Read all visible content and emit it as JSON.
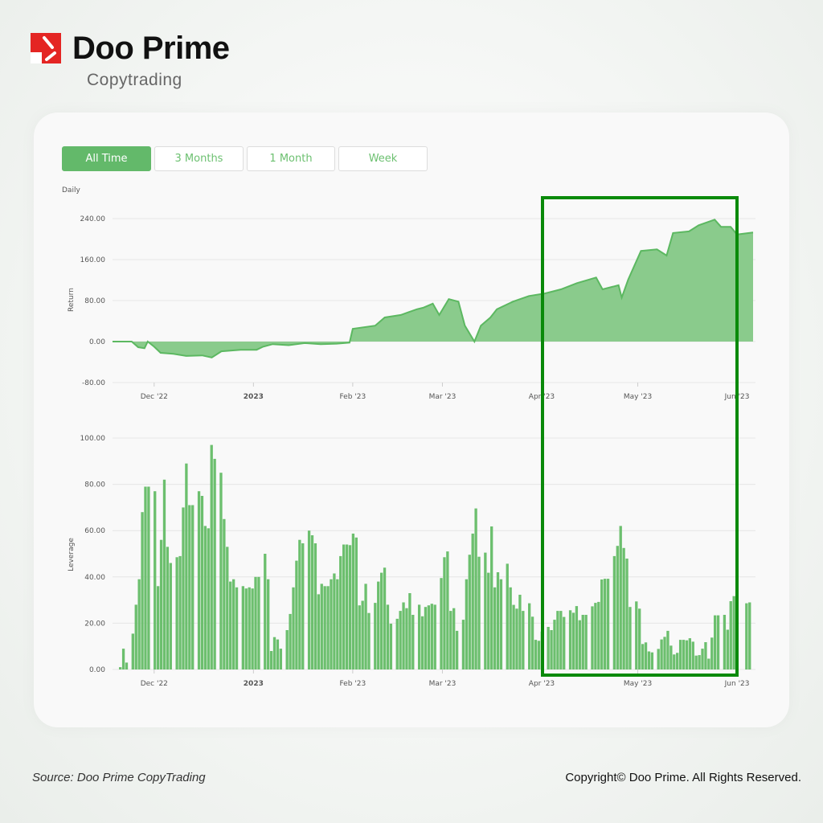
{
  "brand": {
    "name": "Doo Prime",
    "subtitle": "Copytrading",
    "logo_color": "#e42523"
  },
  "tabs": [
    {
      "label": "All Time",
      "active": true
    },
    {
      "label": "3 Months",
      "active": false
    },
    {
      "label": "1 Month",
      "active": false
    },
    {
      "label": "Week",
      "active": false
    }
  ],
  "footer": {
    "source": "Source: Doo Prime CopyTrading",
    "copyright": "Copyright© Doo Prime. All Rights Reserved."
  },
  "colors": {
    "accent": "#63b96a",
    "area_fill": "#8acb8c",
    "area_line": "#5cb861",
    "bar": "#6cbf6e",
    "highlight": "#0a8a0a"
  },
  "chart_data": [
    {
      "type": "area",
      "title": "Daily",
      "ylabel": "Return",
      "ylim": [
        -80,
        240
      ],
      "yticks": [
        "240.00",
        "160.00",
        "80.00",
        "0.00",
        "-80.00"
      ],
      "ytick_values": [
        240,
        160,
        80,
        0,
        -80
      ],
      "xlim": [
        "2022-11-18",
        "2023-06-06"
      ],
      "xticks": [
        {
          "date": "2022-12-01",
          "label": "Dec '22",
          "bold": false
        },
        {
          "date": "2023-01-01",
          "label": "2023",
          "bold": true
        },
        {
          "date": "2023-02-01",
          "label": "Feb '23",
          "bold": false
        },
        {
          "date": "2023-03-01",
          "label": "Mar '23",
          "bold": false
        },
        {
          "date": "2023-04-01",
          "label": "Apr '23",
          "bold": false
        },
        {
          "date": "2023-05-01",
          "label": "May '23",
          "bold": false
        },
        {
          "date": "2023-06-01",
          "label": "Jun '23",
          "bold": false
        }
      ],
      "grid": true,
      "points": [
        [
          "2022-11-18",
          0
        ],
        [
          "2022-11-24",
          0
        ],
        [
          "2022-11-26",
          -11
        ],
        [
          "2022-11-28",
          -13
        ],
        [
          "2022-11-29",
          0
        ],
        [
          "2022-12-01",
          -10
        ],
        [
          "2022-12-03",
          -22
        ],
        [
          "2022-12-07",
          -24
        ],
        [
          "2022-12-11",
          -28
        ],
        [
          "2022-12-16",
          -27
        ],
        [
          "2022-12-19",
          -31
        ],
        [
          "2022-12-22",
          -19
        ],
        [
          "2022-12-28",
          -16
        ],
        [
          "2023-01-02",
          -16
        ],
        [
          "2023-01-04",
          -10
        ],
        [
          "2023-01-07",
          -5
        ],
        [
          "2023-01-12",
          -7
        ],
        [
          "2023-01-17",
          -3
        ],
        [
          "2023-01-22",
          -5
        ],
        [
          "2023-01-27",
          -4
        ],
        [
          "2023-01-31",
          -2
        ],
        [
          "2023-02-01",
          25
        ],
        [
          "2023-02-08",
          31
        ],
        [
          "2023-02-11",
          47
        ],
        [
          "2023-02-16",
          52
        ],
        [
          "2023-02-21",
          63
        ],
        [
          "2023-02-23",
          66
        ],
        [
          "2023-02-26",
          74
        ],
        [
          "2023-02-28",
          52
        ],
        [
          "2023-03-03",
          83
        ],
        [
          "2023-03-06",
          78
        ],
        [
          "2023-03-08",
          31
        ],
        [
          "2023-03-11",
          0
        ],
        [
          "2023-03-13",
          31
        ],
        [
          "2023-03-16",
          47
        ],
        [
          "2023-03-18",
          63
        ],
        [
          "2023-03-23",
          78
        ],
        [
          "2023-03-28",
          89
        ],
        [
          "2023-04-02",
          94
        ],
        [
          "2023-04-07",
          102
        ],
        [
          "2023-04-12",
          114
        ],
        [
          "2023-04-18",
          125
        ],
        [
          "2023-04-20",
          102
        ],
        [
          "2023-04-25",
          110
        ],
        [
          "2023-04-26",
          86
        ],
        [
          "2023-04-28",
          121
        ],
        [
          "2023-05-02",
          177
        ],
        [
          "2023-05-07",
          180
        ],
        [
          "2023-05-10",
          168
        ],
        [
          "2023-05-12",
          212
        ],
        [
          "2023-05-17",
          215
        ],
        [
          "2023-05-20",
          227
        ],
        [
          "2023-05-25",
          238
        ],
        [
          "2023-05-27",
          224
        ],
        [
          "2023-05-30",
          224
        ],
        [
          "2023-06-01",
          209
        ],
        [
          "2023-06-06",
          213
        ]
      ]
    },
    {
      "type": "bar",
      "ylabel": "Leverage",
      "ylim": [
        0,
        100
      ],
      "yticks": [
        "100.00",
        "80.00",
        "60.00",
        "40.00",
        "20.00",
        "0.00"
      ],
      "ytick_values": [
        100,
        80,
        60,
        40,
        20,
        0
      ],
      "xlim": [
        "2022-11-18",
        "2023-06-06"
      ],
      "xticks": [
        {
          "date": "2022-12-01",
          "label": "Dec '22",
          "bold": false
        },
        {
          "date": "2023-01-01",
          "label": "2023",
          "bold": true
        },
        {
          "date": "2023-02-01",
          "label": "Feb '23",
          "bold": false
        },
        {
          "date": "2023-03-01",
          "label": "Mar '23",
          "bold": false
        },
        {
          "date": "2023-04-01",
          "label": "Apr '23",
          "bold": false
        },
        {
          "date": "2023-05-01",
          "label": "May '23",
          "bold": false
        },
        {
          "date": "2023-06-01",
          "label": "Jun '23",
          "bold": false
        }
      ],
      "grid": true,
      "values": [
        1,
        9,
        3,
        null,
        15.5,
        28,
        39,
        68,
        79,
        79,
        null,
        77,
        36,
        56,
        82,
        53,
        46,
        null,
        48.5,
        49,
        70,
        89,
        71,
        71,
        null,
        77,
        75,
        62,
        61,
        97,
        91,
        null,
        85,
        65,
        53,
        38,
        39,
        35.5,
        null,
        36,
        35,
        35.5,
        35,
        40,
        40,
        null,
        50,
        39,
        8,
        14,
        13,
        9,
        null,
        17,
        24,
        35.5,
        47,
        56,
        54.5,
        null,
        60,
        58,
        54.5,
        32.5,
        37,
        36,
        36,
        39,
        41.5,
        39,
        49,
        54,
        54,
        53.7,
        58.7,
        57,
        27.7,
        29.7,
        37,
        24.4,
        null,
        28.8,
        38,
        41.8,
        44,
        28,
        19.8,
        null,
        21.9,
        25.3,
        29,
        26.5,
        33,
        23.6,
        null,
        28,
        23,
        27,
        27.7,
        28.4,
        28,
        null,
        39.5,
        48.5,
        51,
        25.3,
        26.5,
        16.7,
        null,
        21.5,
        39,
        49.6,
        58.7,
        69.6,
        48.7,
        null,
        50.5,
        41.8,
        61.8,
        35.5,
        42,
        39,
        null,
        45.7,
        35.5,
        27.9,
        26.3,
        32.3,
        25.3,
        null,
        28.6,
        22.8,
        12.8,
        12.4,
        16.4,
        null,
        18.4,
        17,
        21.5,
        25.3,
        25.3,
        22.7,
        null,
        25.6,
        24.5,
        27.4,
        21.3,
        23.6,
        23.6,
        null,
        27.3,
        28.8,
        29.2,
        38.9,
        39.2,
        39.2,
        null,
        49,
        53.4,
        62,
        52.5,
        47.9,
        27,
        null,
        29.4,
        26.3,
        11,
        11.7,
        7.8,
        7.4,
        null,
        8.9,
        13,
        14.1,
        16.7,
        10.3,
        6.5,
        7.2,
        12.8,
        12.8,
        12.6,
        13.5,
        12,
        6,
        6.2,
        9,
        11.8,
        4.7,
        13.8,
        23.4,
        23.4,
        null,
        23.6,
        17.2,
        29.5,
        31.7,
        24.2,
        null,
        null,
        28.6,
        29
      ]
    }
  ],
  "highlight": {
    "from": "2023-04-01",
    "to": "2023-05-31"
  }
}
